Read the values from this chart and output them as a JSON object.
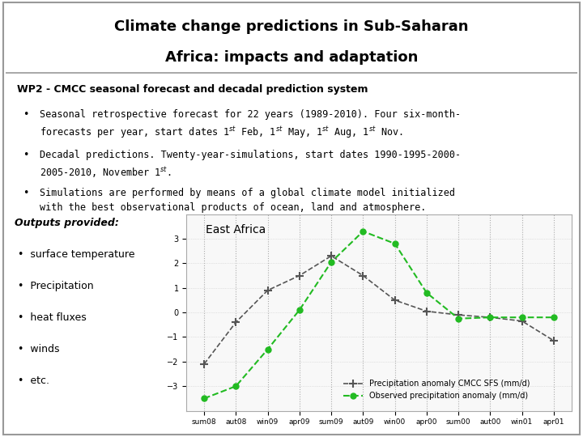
{
  "title_line1": "Climate change predictions in Sub-Saharan",
  "title_line2": "Africa: impacts and adaptation",
  "subtitle": "WP2 - CMCC seasonal forecast and decadal prediction system",
  "bullets": [
    "Seasonal retrospective forecast for 22 years (1989-2010). Four six-month-forecasts per year, start dates 1st Feb, 1st May, 1st Aug, 1st Nov.",
    "Decadal predictions. Twenty-year-simulations, start dates 1990-1995-2000-2005-2010, November 1st.",
    "Simulations are performed by means of a global climate model initialized with the best observational products of ocean, land and atmosphere."
  ],
  "outputs_title": "Outputs provided:",
  "outputs_items": [
    "surface temperature",
    "Precipitation",
    "heat fluxes",
    "winds",
    "etc."
  ],
  "chart_title": "East Africa",
  "x_labels": [
    "sum08",
    "aut08",
    "win09",
    "apr09",
    "sum09",
    "aut09",
    "win00",
    "apr00",
    "sum00",
    "aut00",
    "win01",
    "apr01"
  ],
  "cmcc_y": [
    -2.1,
    -0.4,
    0.9,
    1.5,
    2.3,
    1.5,
    0.5,
    0.05,
    -0.1,
    -0.2,
    -0.35,
    -1.15
  ],
  "obs_y": [
    -3.5,
    -3.0,
    -1.5,
    0.1,
    2.05,
    3.3,
    2.8,
    0.8,
    -0.25,
    -0.2,
    -0.2,
    -0.2
  ],
  "y_min": -4,
  "y_max": 4,
  "cmcc_color": "#555555",
  "obs_color": "#22bb22",
  "legend_cmcc": "Precipitation anomaly CMCC SFS (mm/d)",
  "legend_obs": "Observed precipitation anomaly (mm/d)",
  "bg_color": "#ffffff",
  "header_bg": "#ffffff",
  "border_color": "#cccccc"
}
